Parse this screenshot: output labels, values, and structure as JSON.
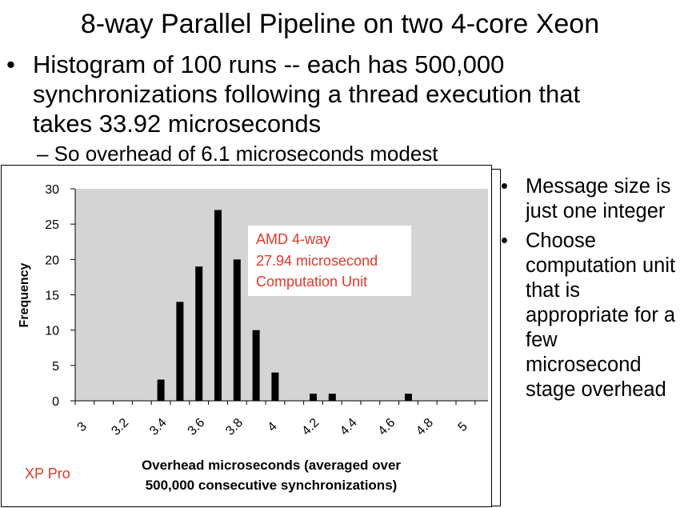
{
  "slide": {
    "title": "8-way Parallel Pipeline on two 4-core Xeon",
    "bullet_main": "Histogram of 100 runs  -- each has 500,000 synchronizations following a thread execution that takes 33.92 microseconds",
    "sub_bullet": "– So overhead of 6.1 microseconds modest",
    "right_bullets": [
      "Message size is just one integer",
      "Choose computation unit that is appropriate for a few microsecond stage overhead"
    ]
  },
  "chart_data": {
    "type": "bar",
    "categories": [
      "3",
      "3.1",
      "3.2",
      "3.3",
      "3.4",
      "3.5",
      "3.6",
      "3.7",
      "3.8",
      "3.9",
      "4",
      "4.1",
      "4.2",
      "4.3",
      "4.4",
      "4.5",
      "4.6",
      "4.7",
      "4.8",
      "4.9",
      "5"
    ],
    "values": [
      0,
      0,
      0,
      0,
      3,
      14,
      19,
      27,
      20,
      10,
      4,
      0,
      1,
      1,
      0,
      0,
      0,
      1,
      0,
      0,
      0
    ],
    "x_tick_labels": [
      "3",
      "3.2",
      "3.4",
      "3.6",
      "3.8",
      "4",
      "4.2",
      "4.4",
      "4.6",
      "4.8",
      "5"
    ],
    "y_ticks": [
      "0",
      "5",
      "10",
      "15",
      "20",
      "25",
      "30"
    ],
    "ylim": [
      0,
      30
    ],
    "ylabel": "Frequency",
    "xlabel_lines": [
      "Overhead microseconds (averaged over",
      "500,000 consecutive  synchronizations)"
    ],
    "annotation_lines": [
      "AMD 4-way",
      "27.94 microsecond",
      "Computation Unit"
    ],
    "footnote": "XP Pro",
    "plot_background": "#d4d4d4",
    "bar_color": "#000000",
    "annotation_color": "#e2382a"
  }
}
